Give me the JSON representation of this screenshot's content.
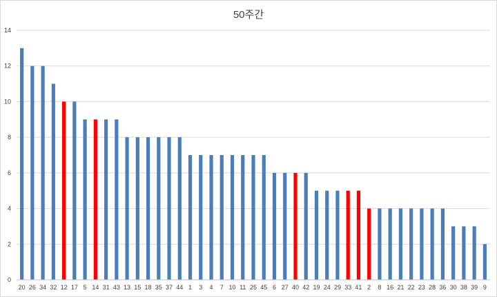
{
  "chart_data": {
    "type": "bar",
    "title": "50주간",
    "xlabel": "",
    "ylabel": "",
    "ylim": [
      0,
      14
    ],
    "yticks": [
      0,
      2,
      4,
      6,
      8,
      10,
      12,
      14
    ],
    "grid": true,
    "legend": "none",
    "categories": [
      "20",
      "26",
      "34",
      "32",
      "12",
      "17",
      "5",
      "14",
      "31",
      "43",
      "13",
      "15",
      "18",
      "35",
      "37",
      "44",
      "1",
      "3",
      "4",
      "7",
      "10",
      "11",
      "25",
      "45",
      "6",
      "27",
      "40",
      "42",
      "19",
      "24",
      "29",
      "33",
      "41",
      "2",
      "8",
      "16",
      "21",
      "22",
      "23",
      "28",
      "36",
      "30",
      "38",
      "39",
      "9"
    ],
    "values": [
      13,
      12,
      12,
      11,
      10,
      10,
      9,
      9,
      9,
      9,
      8,
      8,
      8,
      8,
      8,
      8,
      7,
      7,
      7,
      7,
      7,
      7,
      7,
      7,
      6,
      6,
      6,
      6,
      5,
      5,
      5,
      5,
      5,
      4,
      4,
      4,
      4,
      4,
      4,
      4,
      4,
      3,
      3,
      3,
      2
    ],
    "highlighted_categories": [
      "12",
      "14",
      "40",
      "33",
      "41",
      "2"
    ],
    "colors": {
      "bar": "#4a7ebb",
      "highlight": "#ff0000",
      "grid": "#d9d9d9",
      "axis": "#bfbfbf"
    }
  }
}
